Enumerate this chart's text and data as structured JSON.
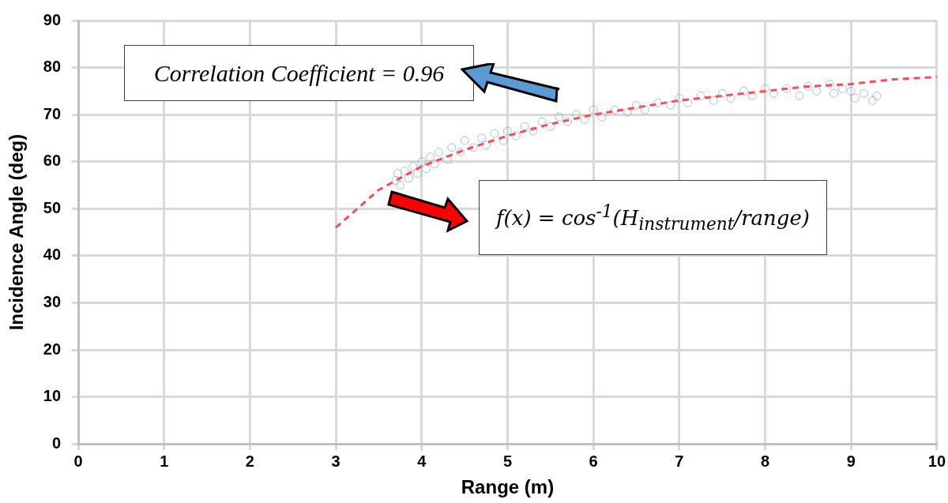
{
  "chart_data": {
    "type": "scatter",
    "xlabel": "Range (m)",
    "ylabel": "Incidence Angle (deg)",
    "xlim": [
      0,
      10
    ],
    "ylim": [
      0,
      90
    ],
    "xticks": [
      0,
      1,
      2,
      3,
      4,
      5,
      6,
      7,
      8,
      9,
      10
    ],
    "yticks": [
      0,
      10,
      20,
      30,
      40,
      50,
      60,
      70,
      80,
      90
    ],
    "grid": true,
    "legend": false,
    "marker": "circle",
    "annotations": [
      "Correlation Coefficient = 0.96",
      "f(x) = cos$^{-1}$(H$_{instrument}$/range)"
    ],
    "series": [
      {
        "color": "#5b9bd5",
        "x": [
          3.7,
          3.72,
          3.75,
          3.8,
          3.85,
          3.9,
          3.95,
          4.0,
          4.05,
          4.1,
          4.15,
          4.2,
          4.3,
          4.35,
          4.45,
          4.5,
          4.6,
          4.7,
          4.75,
          4.85,
          4.95,
          5.0,
          5.1,
          5.2,
          5.3,
          5.4,
          5.5,
          5.6,
          5.7,
          5.8,
          5.9,
          6.0,
          6.1,
          6.25,
          6.4,
          6.5,
          6.6,
          6.75,
          6.9,
          7.0,
          7.1,
          7.25,
          7.4,
          7.5,
          7.6,
          7.75,
          7.85,
          8.0,
          8.1,
          8.25,
          8.4,
          8.5,
          8.6,
          8.75,
          8.8,
          8.9,
          9.0,
          9.05,
          9.15,
          9.25,
          9.3
        ],
        "values": [
          56,
          57.5,
          55,
          58,
          56.5,
          59,
          57.5,
          60,
          58.5,
          61,
          59.5,
          62,
          60.5,
          63,
          62,
          64.5,
          63,
          65,
          63.5,
          66,
          64.5,
          66.5,
          65.5,
          67.5,
          66.5,
          68.5,
          67.5,
          69.5,
          68.5,
          70,
          69,
          71,
          69.5,
          71,
          70.5,
          72,
          71,
          72.5,
          72,
          73.5,
          72.5,
          74,
          73,
          74.5,
          73.5,
          75,
          74,
          75.5,
          74.5,
          75.5,
          74,
          76,
          75,
          76.5,
          74.5,
          75.5,
          75,
          73.5,
          74.5,
          73,
          74
        ]
      },
      {
        "type": "line",
        "color": "#ff4b4b",
        "line_style": "dashed",
        "marker": "none",
        "x": [
          3,
          3.5,
          4,
          4.5,
          5,
          5.5,
          6,
          6.5,
          7,
          7.5,
          8,
          8.5,
          9,
          9.5,
          10
        ],
        "values": [
          46,
          54,
          59,
          62.5,
          65.5,
          68,
          70,
          71.5,
          73,
          74,
          75,
          76,
          76.5,
          77.5,
          78
        ]
      }
    ]
  }
}
